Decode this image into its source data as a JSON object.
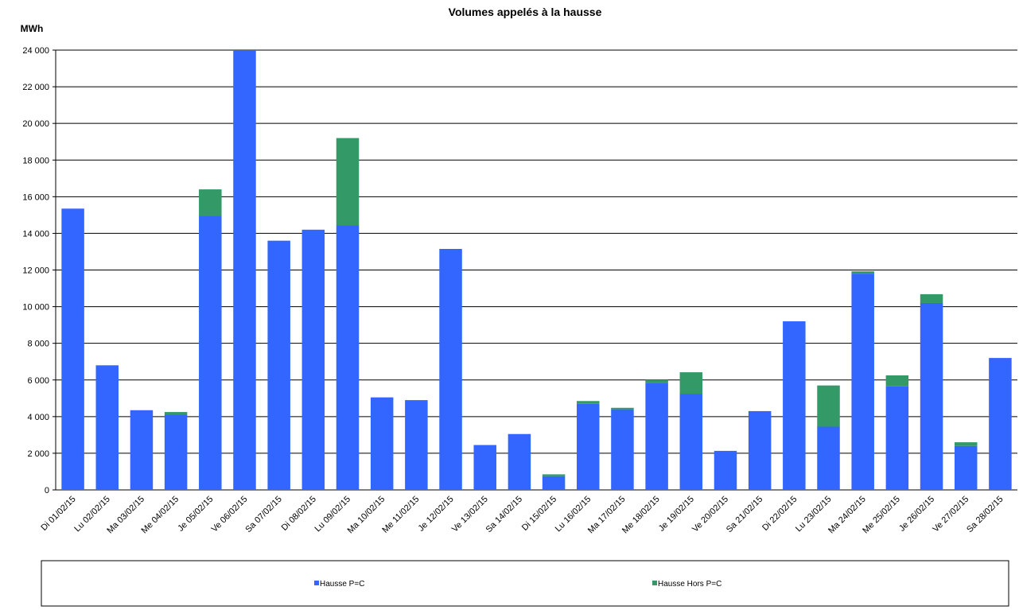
{
  "chart_data": {
    "type": "stacked_bar",
    "title": "Volumes appelés à la hausse",
    "y_label": "MWh",
    "categories": [
      "Di 01/02/15",
      "Lu 02/02/15",
      "Ma 03/02/15",
      "Me 04/02/15",
      "Je 05/02/15",
      "Ve 06/02/15",
      "Sa 07/02/15",
      "Di 08/02/15",
      "Lu 09/02/15",
      "Ma 10/02/15",
      "Me 11/02/15",
      "Je 12/02/15",
      "Ve 13/02/15",
      "Sa 14/02/15",
      "Di 15/02/15",
      "Lu 16/02/15",
      "Ma 17/02/15",
      "Me 18/02/15",
      "Je 19/02/15",
      "Ve 20/02/15",
      "Sa 21/02/15",
      "Di 22/02/15",
      "Lu 23/02/15",
      "Ma 24/02/15",
      "Me 25/02/15",
      "Je 26/02/15",
      "Ve 27/02/15",
      "Sa 28/02/15"
    ],
    "series": [
      {
        "name": "Hausse P=C",
        "color": "#3366ff",
        "values": [
          15350,
          6800,
          4350,
          4100,
          14950,
          24000,
          13600,
          14200,
          14450,
          5050,
          4900,
          13150,
          2450,
          3050,
          750,
          4700,
          4400,
          5850,
          5250,
          2130,
          4300,
          9200,
          3450,
          11800,
          5650,
          10200,
          2400,
          7200
        ]
      },
      {
        "name": "Hausse Hors P=C",
        "color": "#339966",
        "values": [
          0,
          0,
          0,
          150,
          1450,
          0,
          0,
          0,
          4750,
          0,
          0,
          0,
          0,
          0,
          100,
          150,
          80,
          150,
          1170,
          0,
          0,
          0,
          2250,
          130,
          600,
          480,
          200,
          0
        ]
      }
    ],
    "ylim": [
      0,
      24000
    ],
    "yticks": [
      0,
      {
        "value": 2000,
        "label": "2 000"
      },
      {
        "value": 4000,
        "label": "4 000"
      },
      {
        "value": 6000,
        "label": "6 000"
      },
      {
        "value": 8000,
        "label": "8 000"
      },
      {
        "value": 10000,
        "label": "10 000"
      },
      {
        "value": 12000,
        "label": "12 000"
      },
      {
        "value": 14000,
        "label": "14 000"
      },
      {
        "value": 16000,
        "label": "16 000"
      },
      {
        "value": 18000,
        "label": "18 000"
      },
      {
        "value": 20000,
        "label": "20 000"
      },
      {
        "value": 22000,
        "label": "22 000"
      },
      {
        "value": 24000,
        "label": "24 000"
      }
    ],
    "grid": true,
    "legend": "bottom"
  }
}
